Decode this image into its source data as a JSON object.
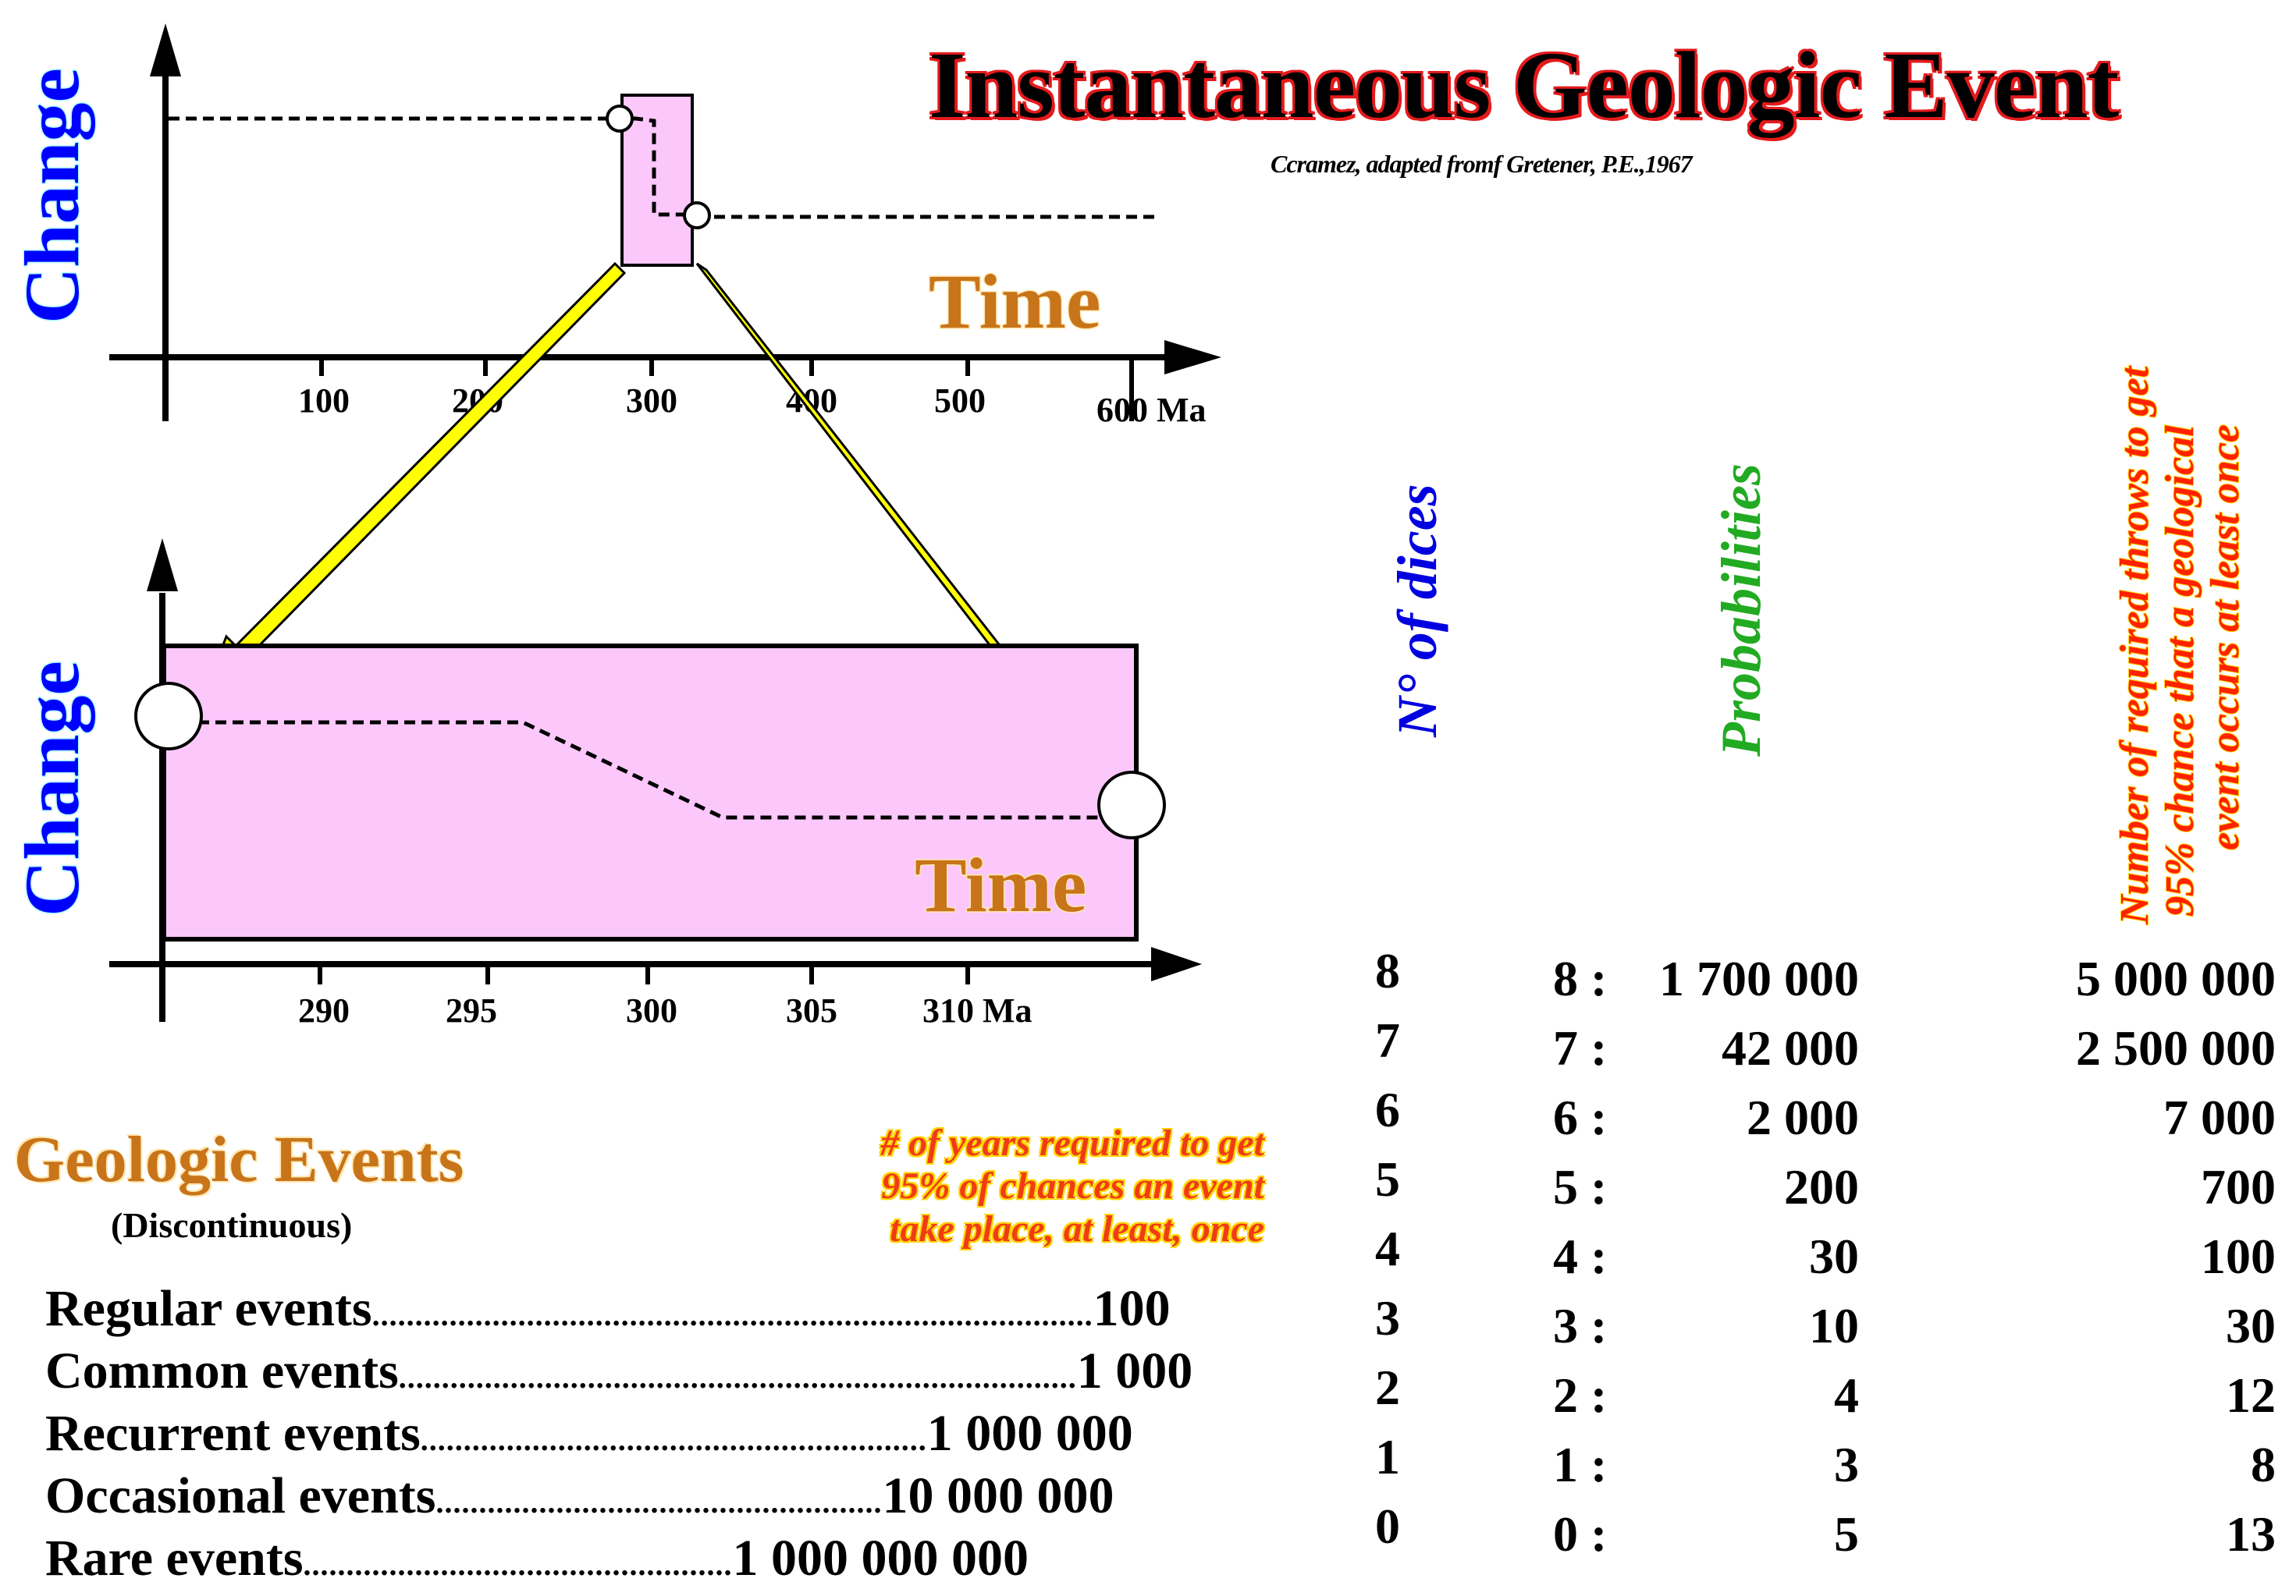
{
  "title": "Instantaneous Geologic Event",
  "credit": "Ccramez, adapted fromf Gretener, P.E.,1967",
  "top_graph": {
    "y_label": "Change",
    "x_label": "Time",
    "ticks": [
      "100",
      "200",
      "300",
      "400",
      "500",
      "600 Ma"
    ]
  },
  "bottom_graph": {
    "y_label": "Change",
    "x_label": "Time",
    "ticks": [
      "290",
      "295",
      "300",
      "305",
      "310 Ma"
    ]
  },
  "column_headers": {
    "dice": "N° of dices",
    "probabilities": "Probabilities",
    "throws": [
      "Number of required throws to get",
      "95% chance that a geological",
      "event occurs at least once"
    ]
  },
  "table": {
    "dice": [
      "8",
      "7",
      "6",
      "5",
      "4",
      "3",
      "2",
      "1",
      "0"
    ],
    "prob_prefix": [
      "8 :",
      "7 :",
      "6 :",
      "5 :",
      "4 :",
      "3 :",
      "2 :",
      "1 :",
      "0 :"
    ],
    "prob_value": [
      "1 700 000",
      "42 000",
      "2 000",
      "200",
      "30",
      "10",
      "4",
      "3",
      "5"
    ],
    "throws": [
      "5 000 000",
      "2 500 000",
      "7 000",
      "700",
      "100",
      "30",
      "12",
      "8",
      "13"
    ]
  },
  "events": {
    "title": "Geologic Events",
    "subtitle": "(Discontinuous)",
    "note": [
      "# of years required to get",
      "95% of chances an event",
      "take place, at least, once"
    ],
    "items": [
      {
        "label": "Regular events",
        "value": "100"
      },
      {
        "label": "Common events",
        "value": "1 000"
      },
      {
        "label": "Recurrent events",
        "value": "1 000 000"
      },
      {
        "label": "Occasional events",
        "value": "10 000 000"
      },
      {
        "label": "Rare events",
        "value": "1 000 000 000"
      }
    ]
  },
  "colors": {
    "highlight": "#fcc8fc",
    "arrow": "#ffff00",
    "change_label": "#0000ff",
    "time_label": "#c8741a",
    "dice_header": "#0000e0",
    "prob_header": "#22aa22",
    "throws_header": "#ff2200"
  }
}
